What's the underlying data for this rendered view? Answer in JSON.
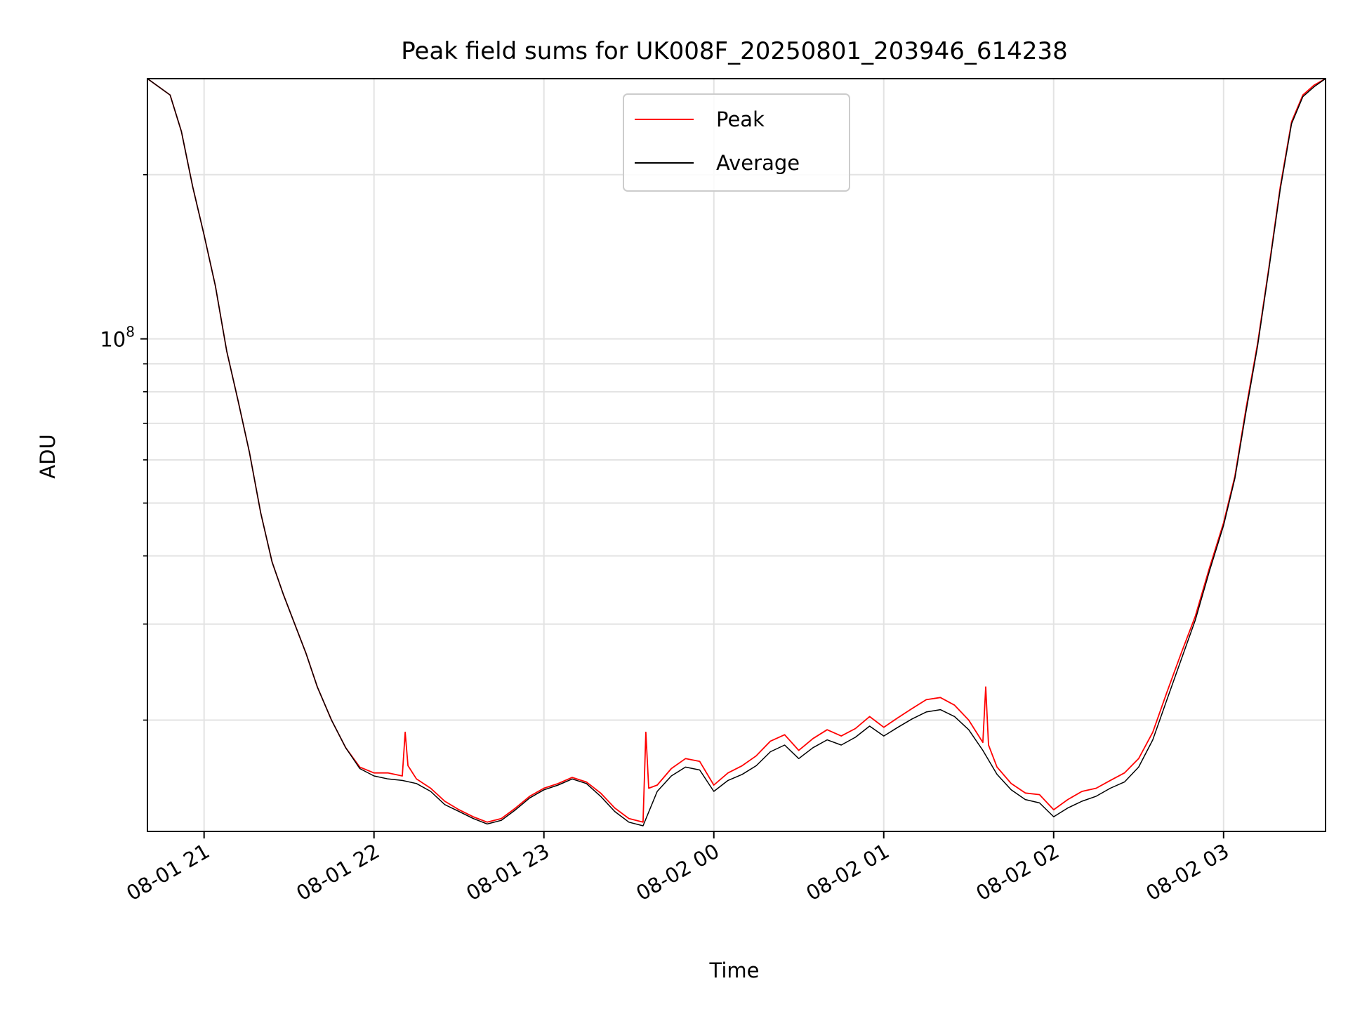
{
  "chart_data": {
    "type": "line",
    "title": "Peak field sums for UK008F_20250801_203946_614238",
    "xlabel": "Time",
    "ylabel": "ADU",
    "yscale": "log",
    "xlim": [
      "08-01 20:40",
      "08-02 03:36"
    ],
    "ylim": [
      12500000,
      300000000
    ],
    "grid": true,
    "legend_position": "top-center",
    "x_tick_labels": [
      "08-01 21",
      "08-01 22",
      "08-01 23",
      "08-02 00",
      "08-02 01",
      "08-02 02",
      "08-02 03"
    ],
    "x_ticks": [
      "08-01 21:00",
      "08-01 22:00",
      "08-01 23:00",
      "08-02 00:00",
      "08-02 01:00",
      "08-02 02:00",
      "08-02 03:00"
    ],
    "y_major_ticks": [
      {
        "value": 100000000,
        "mantissa": "10",
        "exponent": "8"
      }
    ],
    "y_minor_ticks": [
      20000000,
      30000000,
      40000000,
      50000000,
      60000000,
      70000000,
      80000000,
      90000000,
      200000000
    ],
    "series": [
      {
        "name": "Peak",
        "color": "#ff0000",
        "x": [
          "08-01 20:40",
          "08-01 20:48",
          "08-01 20:52",
          "08-01 20:56",
          "08-01 21:00",
          "08-01 21:04",
          "08-01 21:08",
          "08-01 21:12",
          "08-01 21:16",
          "08-01 21:20",
          "08-01 21:24",
          "08-01 21:28",
          "08-01 21:32",
          "08-01 21:36",
          "08-01 21:40",
          "08-01 21:45",
          "08-01 21:50",
          "08-01 21:55",
          "08-01 22:00",
          "08-01 22:05",
          "08-01 22:10",
          "08-01 22:11",
          "08-01 22:12",
          "08-01 22:15",
          "08-01 22:20",
          "08-01 22:25",
          "08-01 22:30",
          "08-01 22:35",
          "08-01 22:40",
          "08-01 22:45",
          "08-01 22:50",
          "08-01 22:55",
          "08-01 23:00",
          "08-01 23:05",
          "08-01 23:10",
          "08-01 23:15",
          "08-01 23:20",
          "08-01 23:25",
          "08-01 23:30",
          "08-01 23:35",
          "08-01 23:36",
          "08-01 23:37",
          "08-01 23:40",
          "08-01 23:45",
          "08-01 23:50",
          "08-01 23:55",
          "08-02 00:00",
          "08-02 00:05",
          "08-02 00:10",
          "08-02 00:15",
          "08-02 00:20",
          "08-02 00:25",
          "08-02 00:30",
          "08-02 00:35",
          "08-02 00:40",
          "08-02 00:45",
          "08-02 00:50",
          "08-02 00:55",
          "08-02 01:00",
          "08-02 01:05",
          "08-02 01:10",
          "08-02 01:15",
          "08-02 01:20",
          "08-02 01:25",
          "08-02 01:30",
          "08-02 01:35",
          "08-02 01:36",
          "08-02 01:37",
          "08-02 01:40",
          "08-02 01:45",
          "08-02 01:50",
          "08-02 01:55",
          "08-02 02:00",
          "08-02 02:05",
          "08-02 02:10",
          "08-02 02:15",
          "08-02 02:20",
          "08-02 02:25",
          "08-02 02:30",
          "08-02 02:35",
          "08-02 02:40",
          "08-02 02:45",
          "08-02 02:50",
          "08-02 02:55",
          "08-02 03:00",
          "08-02 03:04",
          "08-02 03:08",
          "08-02 03:12",
          "08-02 03:16",
          "08-02 03:20",
          "08-02 03:24",
          "08-02 03:28",
          "08-02 03:32",
          "08-02 03:36"
        ],
        "y": [
          300000000,
          280000000,
          240000000,
          190000000,
          155000000,
          125000000,
          95000000,
          77000000,
          62000000,
          48000000,
          39000000,
          34000000,
          30000000,
          26500000,
          23000000,
          20000000,
          17800000,
          16400000,
          16000000,
          16000000,
          15800000,
          19000000,
          16500000,
          15600000,
          15000000,
          14200000,
          13700000,
          13300000,
          13000000,
          13200000,
          13800000,
          14500000,
          15000000,
          15300000,
          15700000,
          15400000,
          14700000,
          13800000,
          13200000,
          13000000,
          19000000,
          15000000,
          15200000,
          16300000,
          17000000,
          16800000,
          15200000,
          16000000,
          16500000,
          17200000,
          18300000,
          18800000,
          17600000,
          18500000,
          19200000,
          18700000,
          19300000,
          20300000,
          19400000,
          20200000,
          21000000,
          21800000,
          22000000,
          21300000,
          20000000,
          18200000,
          23000000,
          18000000,
          16400000,
          15300000,
          14700000,
          14600000,
          13700000,
          14300000,
          14800000,
          15000000,
          15500000,
          16000000,
          17000000,
          19000000,
          22500000,
          26500000,
          31000000,
          38000000,
          46000000,
          56000000,
          75000000,
          98000000,
          135000000,
          190000000,
          250000000,
          280000000,
          292000000,
          300000000
        ]
      },
      {
        "name": "Average",
        "color": "#000000",
        "x": [
          "08-01 20:40",
          "08-01 20:48",
          "08-01 20:52",
          "08-01 20:56",
          "08-01 21:00",
          "08-01 21:04",
          "08-01 21:08",
          "08-01 21:12",
          "08-01 21:16",
          "08-01 21:20",
          "08-01 21:24",
          "08-01 21:28",
          "08-01 21:32",
          "08-01 21:36",
          "08-01 21:40",
          "08-01 21:45",
          "08-01 21:50",
          "08-01 21:55",
          "08-01 22:00",
          "08-01 22:05",
          "08-01 22:10",
          "08-01 22:15",
          "08-01 22:20",
          "08-01 22:25",
          "08-01 22:30",
          "08-01 22:35",
          "08-01 22:40",
          "08-01 22:45",
          "08-01 22:50",
          "08-01 22:55",
          "08-01 23:00",
          "08-01 23:05",
          "08-01 23:10",
          "08-01 23:15",
          "08-01 23:20",
          "08-01 23:25",
          "08-01 23:30",
          "08-01 23:35",
          "08-01 23:40",
          "08-01 23:45",
          "08-01 23:50",
          "08-01 23:55",
          "08-02 00:00",
          "08-02 00:05",
          "08-02 00:10",
          "08-02 00:15",
          "08-02 00:20",
          "08-02 00:25",
          "08-02 00:30",
          "08-02 00:35",
          "08-02 00:40",
          "08-02 00:45",
          "08-02 00:50",
          "08-02 00:55",
          "08-02 01:00",
          "08-02 01:05",
          "08-02 01:10",
          "08-02 01:15",
          "08-02 01:20",
          "08-02 01:25",
          "08-02 01:30",
          "08-02 01:35",
          "08-02 01:40",
          "08-02 01:45",
          "08-02 01:50",
          "08-02 01:55",
          "08-02 02:00",
          "08-02 02:05",
          "08-02 02:10",
          "08-02 02:15",
          "08-02 02:20",
          "08-02 02:25",
          "08-02 02:30",
          "08-02 02:35",
          "08-02 02:40",
          "08-02 02:45",
          "08-02 02:50",
          "08-02 02:55",
          "08-02 03:00",
          "08-02 03:04",
          "08-02 03:08",
          "08-02 03:12",
          "08-02 03:16",
          "08-02 03:20",
          "08-02 03:24",
          "08-02 03:28",
          "08-02 03:32",
          "08-02 03:36"
        ],
        "y": [
          300000000,
          280000000,
          240000000,
          190000000,
          155000000,
          125000000,
          95000000,
          77000000,
          62000000,
          48000000,
          39000000,
          34000000,
          30000000,
          26500000,
          23000000,
          20000000,
          17800000,
          16300000,
          15800000,
          15600000,
          15500000,
          15300000,
          14800000,
          14000000,
          13600000,
          13200000,
          12900000,
          13100000,
          13700000,
          14400000,
          14900000,
          15200000,
          15600000,
          15300000,
          14500000,
          13600000,
          13000000,
          12800000,
          14800000,
          15800000,
          16400000,
          16200000,
          14800000,
          15500000,
          15900000,
          16500000,
          17500000,
          18000000,
          17000000,
          17800000,
          18400000,
          18000000,
          18600000,
          19500000,
          18700000,
          19400000,
          20100000,
          20700000,
          20900000,
          20300000,
          19200000,
          17600000,
          15900000,
          14900000,
          14300000,
          14100000,
          13300000,
          13800000,
          14200000,
          14500000,
          15000000,
          15400000,
          16400000,
          18400000,
          21800000,
          25800000,
          30500000,
          37500000,
          45500000,
          55500000,
          74000000,
          97000000,
          134000000,
          188000000,
          248000000,
          278000000,
          290000000,
          300000000
        ]
      }
    ]
  }
}
